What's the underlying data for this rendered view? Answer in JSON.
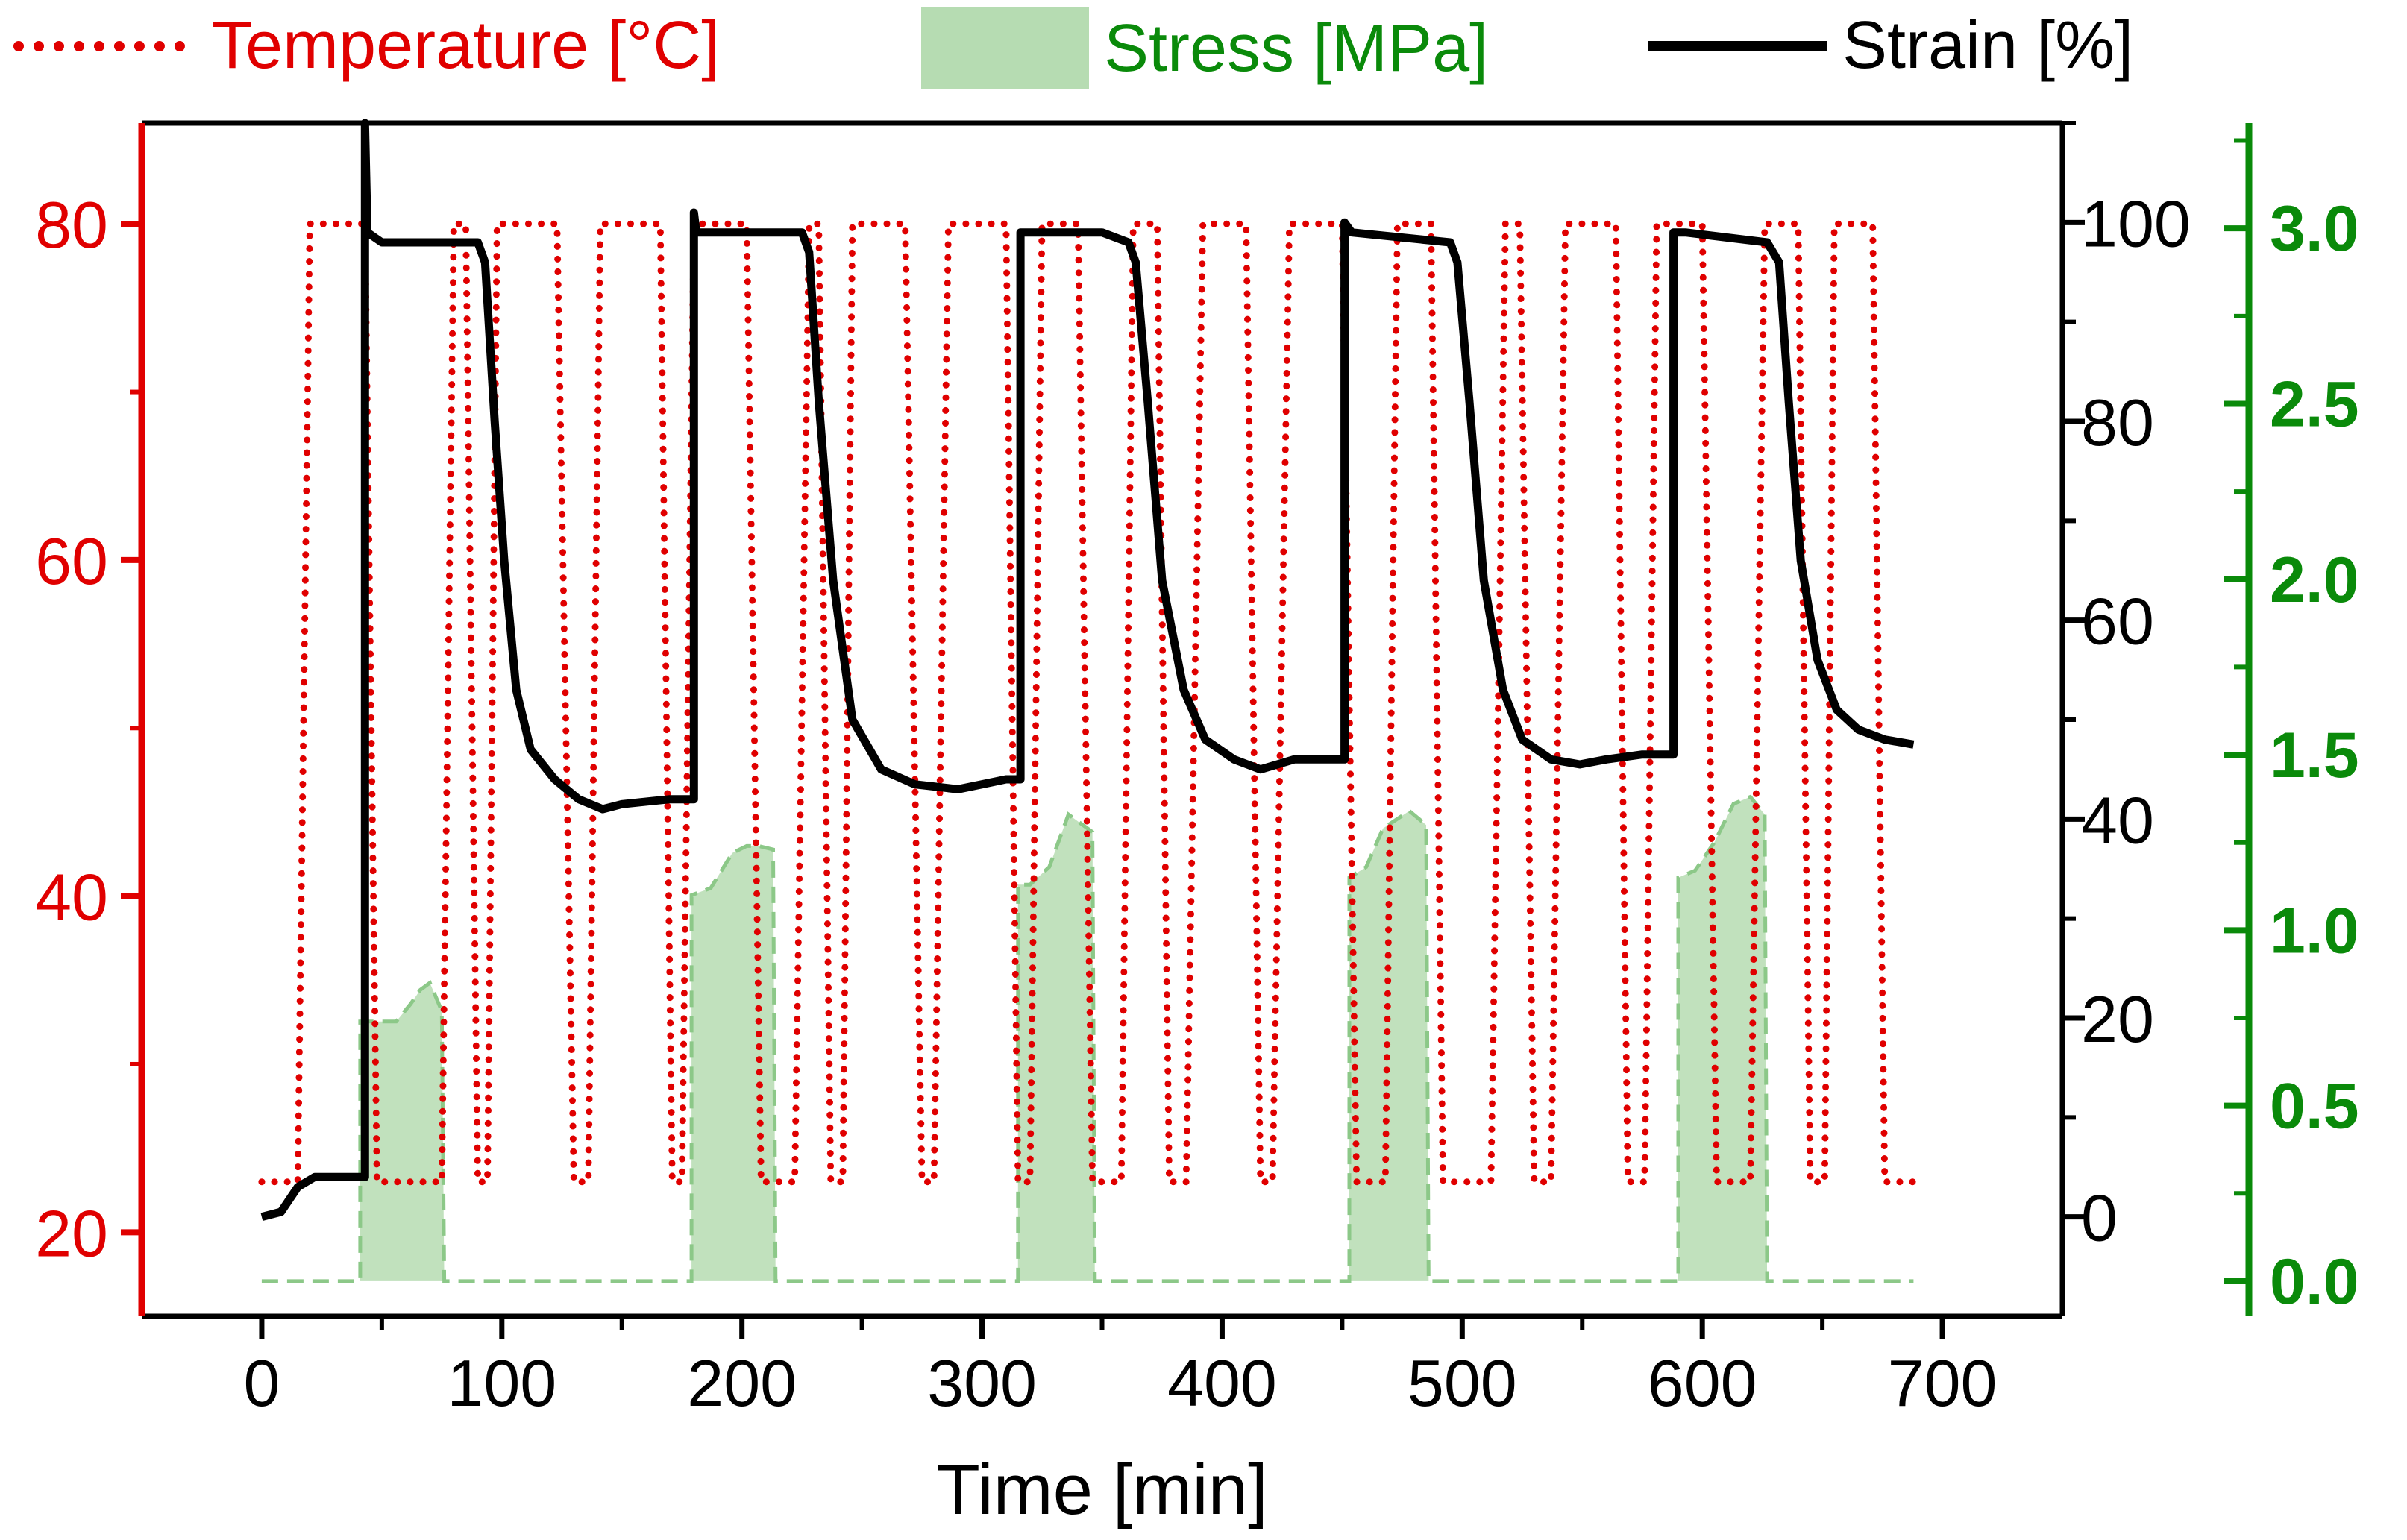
{
  "chart_data": {
    "type": "line",
    "title": "",
    "legend": {
      "placement": "top",
      "entries": [
        {
          "label": "Temperature [°C]",
          "color": "#e00000",
          "style": "dotted"
        },
        {
          "label": "Stress [MPa]",
          "color": "#b6dcb2",
          "style": "filled-area"
        },
        {
          "label": "Strain [%]",
          "color": "#000000",
          "style": "solid"
        }
      ]
    },
    "x_axis": {
      "label": "Time [min]",
      "range": [
        -50,
        750
      ],
      "ticks": [
        "0",
        "100",
        "200",
        "300",
        "400",
        "500",
        "600",
        "700"
      ]
    },
    "y_axis_left": {
      "label": "Temperature [°C]",
      "color": "#e00000",
      "range": [
        15,
        86
      ],
      "ticks": [
        "20",
        "40",
        "60",
        "80"
      ]
    },
    "y_axis_right": {
      "label": "Strain [%]",
      "color": "#000000",
      "range": [
        -10,
        110
      ],
      "ticks": [
        "0",
        "20",
        "40",
        "60",
        "80",
        "100"
      ]
    },
    "y_axis_right2": {
      "label": "Stress [MPa]",
      "color": "#0a8a0a",
      "range": [
        -0.1,
        3.3
      ],
      "ticks": [
        "0.0",
        "0.5",
        "1.0",
        "1.5",
        "2.0",
        "2.5",
        "3.0"
      ]
    },
    "series": [
      {
        "name": "Temperature [°C]",
        "axis": "left",
        "color": "#e00000",
        "points": [
          [
            0,
            23
          ],
          [
            15,
            23
          ],
          [
            20,
            80
          ],
          [
            43,
            80
          ],
          [
            48,
            23
          ],
          [
            75,
            23
          ],
          [
            80,
            80
          ],
          [
            85,
            80
          ],
          [
            90,
            23
          ],
          [
            94,
            23
          ],
          [
            98,
            80
          ],
          [
            123,
            80
          ],
          [
            130,
            23
          ],
          [
            136,
            23
          ],
          [
            141,
            80
          ],
          [
            166,
            80
          ],
          [
            171,
            23
          ],
          [
            175,
            23
          ],
          [
            180,
            80
          ],
          [
            202,
            80
          ],
          [
            208,
            23
          ],
          [
            222,
            23
          ],
          [
            228,
            80
          ],
          [
            232,
            80
          ],
          [
            237,
            23
          ],
          [
            242,
            23
          ],
          [
            246,
            80
          ],
          [
            268,
            80
          ],
          [
            275,
            23
          ],
          [
            280,
            23
          ],
          [
            286,
            80
          ],
          [
            310,
            80
          ],
          [
            315,
            23
          ],
          [
            320,
            23
          ],
          [
            325,
            80
          ],
          [
            340,
            80
          ],
          [
            346,
            23
          ],
          [
            358,
            23
          ],
          [
            363,
            80
          ],
          [
            373,
            80
          ],
          [
            378,
            23
          ],
          [
            385,
            23
          ],
          [
            392,
            80
          ],
          [
            410,
            80
          ],
          [
            416,
            23
          ],
          [
            421,
            23
          ],
          [
            428,
            80
          ],
          [
            450,
            80
          ],
          [
            456,
            23
          ],
          [
            468,
            23
          ],
          [
            473,
            80
          ],
          [
            487,
            80
          ],
          [
            492,
            23
          ],
          [
            512,
            23
          ],
          [
            518,
            80
          ],
          [
            524,
            80
          ],
          [
            530,
            23
          ],
          [
            537,
            23
          ],
          [
            543,
            80
          ],
          [
            564,
            80
          ],
          [
            569,
            23
          ],
          [
            576,
            23
          ],
          [
            581,
            80
          ],
          [
            600,
            80
          ],
          [
            606,
            23
          ],
          [
            620,
            23
          ],
          [
            626,
            80
          ],
          [
            640,
            80
          ],
          [
            645,
            23
          ],
          [
            651,
            23
          ],
          [
            655,
            80
          ],
          [
            671,
            80
          ],
          [
            676,
            23
          ],
          [
            688,
            23
          ]
        ]
      },
      {
        "name": "Stress [MPa]",
        "axis": "right2",
        "color": "#b6dcb2",
        "segments": [
          [
            [
              0,
              0
            ],
            [
              41,
              0
            ],
            [
              41,
              0.74
            ],
            [
              56,
              0.74
            ],
            [
              62,
              0.79
            ],
            [
              66,
              0.83
            ],
            [
              70,
              0.85
            ],
            [
              75,
              0.77
            ],
            [
              76,
              0
            ],
            [
              179,
              0
            ],
            [
              179,
              1.1
            ],
            [
              187,
              1.12
            ],
            [
              196,
              1.22
            ],
            [
              202,
              1.24
            ],
            [
              207,
              1.24
            ],
            [
              213,
              1.23
            ],
            [
              214,
              0
            ],
            [
              315,
              0
            ],
            [
              315,
              1.13
            ],
            [
              320,
              1.13
            ],
            [
              328,
              1.18
            ],
            [
              336,
              1.33
            ],
            [
              346,
              1.28
            ],
            [
              347,
              0
            ],
            [
              453,
              0
            ],
            [
              453,
              1.15
            ],
            [
              460,
              1.18
            ],
            [
              467,
              1.29
            ],
            [
              478,
              1.34
            ],
            [
              485,
              1.3
            ],
            [
              486,
              0
            ],
            [
              590,
              0
            ],
            [
              590,
              1.15
            ],
            [
              597,
              1.17
            ],
            [
              605,
              1.25
            ],
            [
              613,
              1.36
            ],
            [
              620,
              1.38
            ],
            [
              626,
              1.33
            ],
            [
              627,
              0
            ],
            [
              688,
              0
            ]
          ]
        ]
      },
      {
        "name": "Strain [%]",
        "axis": "right",
        "color": "#000000",
        "points": [
          [
            0,
            0
          ],
          [
            8,
            0.5
          ],
          [
            15,
            3
          ],
          [
            22,
            4
          ],
          [
            43,
            4
          ],
          [
            43,
            110
          ],
          [
            44,
            99
          ],
          [
            50,
            98
          ],
          [
            90,
            98
          ],
          [
            93,
            96
          ],
          [
            97,
            80
          ],
          [
            101,
            66
          ],
          [
            106,
            53
          ],
          [
            112,
            47
          ],
          [
            122,
            44
          ],
          [
            132,
            42
          ],
          [
            142,
            41
          ],
          [
            150,
            41.5
          ],
          [
            162,
            41.8
          ],
          [
            170,
            42
          ],
          [
            180,
            42
          ],
          [
            180,
            101
          ],
          [
            181,
            99
          ],
          [
            225,
            99
          ],
          [
            228,
            97
          ],
          [
            232,
            82
          ],
          [
            238,
            64
          ],
          [
            246,
            50
          ],
          [
            258,
            45
          ],
          [
            272,
            43.5
          ],
          [
            290,
            43
          ],
          [
            300,
            43.5
          ],
          [
            310,
            44
          ],
          [
            316,
            44
          ],
          [
            316,
            99
          ],
          [
            350,
            99
          ],
          [
            361,
            98
          ],
          [
            364,
            96
          ],
          [
            369,
            82
          ],
          [
            375,
            64
          ],
          [
            384,
            53
          ],
          [
            393,
            48
          ],
          [
            405,
            46
          ],
          [
            416,
            45
          ],
          [
            430,
            46
          ],
          [
            440,
            46
          ],
          [
            451,
            46
          ],
          [
            451,
            100
          ],
          [
            454,
            99
          ],
          [
            495,
            98
          ],
          [
            498,
            96
          ],
          [
            503,
            82
          ],
          [
            509,
            64
          ],
          [
            517,
            53
          ],
          [
            525,
            48
          ],
          [
            537,
            46
          ],
          [
            549,
            45.5
          ],
          [
            560,
            46
          ],
          [
            575,
            46.5
          ],
          [
            588,
            46.5
          ],
          [
            588,
            99
          ],
          [
            593,
            99
          ],
          [
            627,
            98
          ],
          [
            632,
            96
          ],
          [
            636,
            82
          ],
          [
            641,
            66
          ],
          [
            648,
            56
          ],
          [
            656,
            51
          ],
          [
            665,
            49
          ],
          [
            676,
            48
          ],
          [
            688,
            47.5
          ]
        ]
      }
    ]
  }
}
